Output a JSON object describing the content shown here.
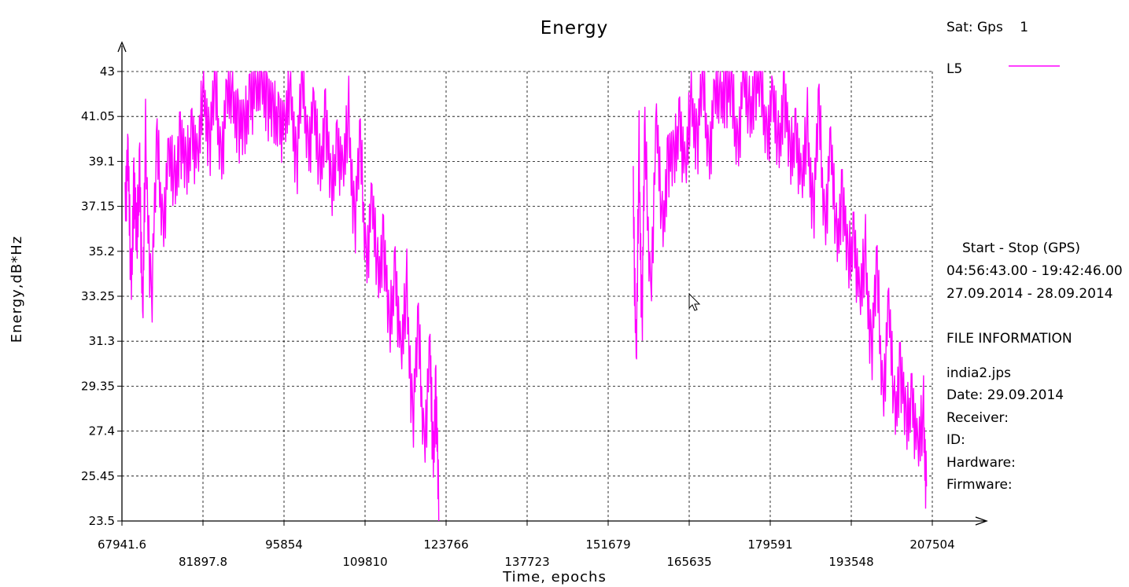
{
  "chart_data": {
    "type": "line",
    "title": "Energy",
    "xlabel": "Time, epochs",
    "ylabel": "Energy,dB*Hz",
    "ylim": [
      23.5,
      43
    ],
    "xlim": [
      67941.6,
      207504
    ],
    "yticks": [
      "23.5",
      "25.45",
      "27.4",
      "29.35",
      "31.3",
      "33.25",
      "35.2",
      "37.15",
      "39.1",
      "41.05",
      "43"
    ],
    "xticks": [
      "67941.6",
      "81897.8",
      "95854",
      "109810",
      "123766",
      "137723",
      "151679",
      "165635",
      "179591",
      "193548",
      "207504"
    ],
    "grid": true,
    "line_color": "#ff00ff",
    "series": [
      {
        "name": "L5",
        "segments": [
          {
            "x": [
              68500,
              69000,
              69500,
              70000,
              70500,
              71000,
              71500,
              72000,
              73000,
              74000,
              75000,
              76000,
              77000,
              78000,
              79000,
              80000,
              81000,
              82000,
              83000,
              84000,
              85000,
              86000,
              87000,
              88000,
              89000,
              90000,
              91000,
              92000,
              93000,
              94000,
              95000,
              96000,
              97000,
              98000,
              99000,
              100000,
              101000,
              102000,
              103000,
              104000,
              105000,
              106000,
              107000,
              108000,
              109000,
              110000,
              111000,
              112000,
              113000,
              114000,
              115000,
              116000,
              117000,
              118000,
              119000,
              120000,
              121000,
              121500,
              122000,
              122500
            ],
            "y": [
              37.8,
              39.0,
              33.5,
              38.5,
              35.0,
              39.5,
              31.5,
              40.0,
              33.0,
              39.5,
              36.5,
              39.0,
              38.0,
              40.5,
              38.0,
              41.0,
              38.5,
              42.5,
              40.0,
              42.0,
              39.5,
              41.5,
              42.0,
              41.0,
              39.8,
              42.5,
              41.5,
              42.8,
              42.0,
              40.5,
              41.5,
              40.0,
              42.5,
              39.0,
              42.5,
              40.0,
              41.0,
              38.5,
              41.5,
              37.0,
              40.5,
              38.0,
              41.0,
              36.5,
              39.5,
              35.0,
              37.0,
              34.0,
              36.0,
              31.0,
              35.0,
              30.0,
              33.5,
              28.0,
              31.5,
              27.0,
              30.5,
              26.0,
              29.5,
              23.5
            ]
          },
          {
            "x": [
              156000,
              156500,
              157000,
              157500,
              158000,
              159000,
              160000,
              161000,
              162000,
              163000,
              164000,
              165000,
              166000,
              167000,
              168000,
              169000,
              170000,
              171000,
              172000,
              173000,
              174000,
              175000,
              176000,
              177000,
              178000,
              179000,
              180000,
              181000,
              182000,
              183000,
              184000,
              185000,
              186000,
              187000,
              188000,
              189000,
              190000,
              191000,
              192000,
              193000,
              194000,
              195000,
              196000,
              197000,
              198000,
              199000,
              200000,
              201000,
              202000,
              203000,
              204000,
              205000,
              206000,
              206500
            ],
            "y": [
              38.5,
              29.5,
              39.5,
              32.0,
              40.0,
              33.5,
              40.5,
              36.0,
              39.5,
              38.5,
              41.5,
              38.0,
              42.0,
              40.0,
              42.5,
              39.5,
              41.5,
              42.0,
              42.5,
              41.5,
              40.0,
              42.5,
              41.0,
              42.8,
              42.0,
              40.5,
              41.5,
              39.5,
              42.5,
              38.5,
              41.0,
              37.5,
              40.5,
              37.0,
              41.0,
              36.5,
              39.5,
              35.5,
              38.0,
              34.0,
              36.5,
              32.5,
              35.0,
              31.0,
              34.0,
              29.0,
              32.5,
              28.0,
              30.5,
              27.0,
              29.5,
              26.0,
              28.0,
              25.0
            ]
          }
        ]
      }
    ]
  },
  "legend": {
    "sat_label": "Sat: Gps",
    "sat_number": "1",
    "signal": "L5",
    "color": "#ff00ff"
  },
  "info": {
    "start_stop_header": "Start  -  Stop  (GPS)",
    "time_range": "04:56:43.00 - 19:42:46.00",
    "date_range": "27.09.2014 - 28.09.2014",
    "file_info_header": "FILE INFORMATION",
    "file_name": "india2.jps",
    "date": "Date: 29.09.2014",
    "receiver": "Receiver:",
    "id": "ID:",
    "hardware": "Hardware:",
    "firmware": "Firmware:"
  }
}
